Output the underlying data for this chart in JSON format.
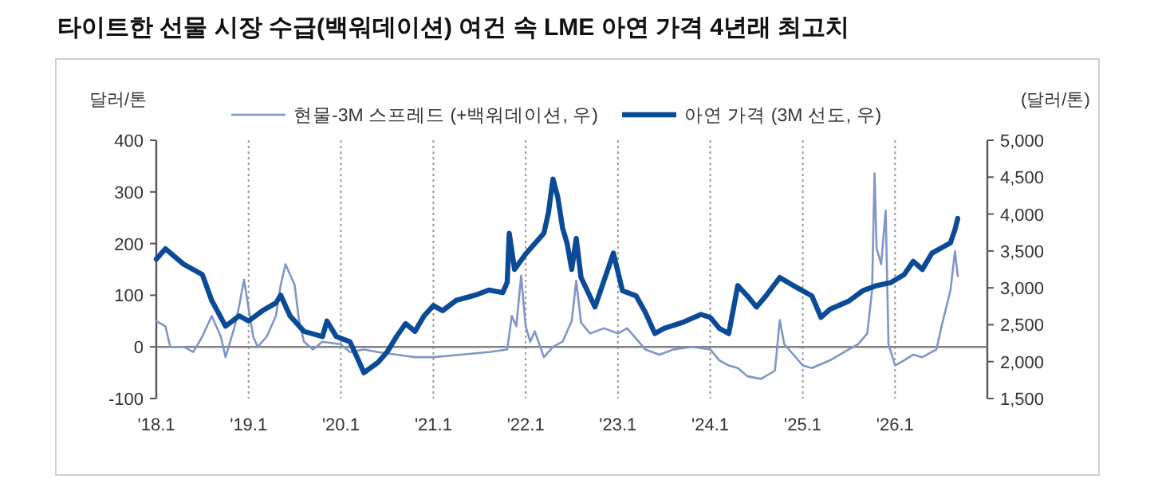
{
  "chart_data": {
    "type": "line",
    "title": "타이트한 선물 시장 수급(백워데이션) 여건 속 LME 아연 가격 4년래 최고치",
    "ylabel": "달러/톤",
    "y2label": "(달러/톤)",
    "xlim": [
      "2018-01-01",
      "2027-01-01"
    ],
    "xticks": [
      {
        "value": "2018-01-01",
        "label": "'18.1"
      },
      {
        "value": "2019-01-01",
        "label": "'19.1"
      },
      {
        "value": "2020-01-01",
        "label": "'20.1"
      },
      {
        "value": "2021-01-01",
        "label": "'21.1"
      },
      {
        "value": "2022-01-01",
        "label": "'22.1"
      },
      {
        "value": "2023-01-01",
        "label": "'23.1"
      },
      {
        "value": "2024-01-01",
        "label": "'24.1"
      },
      {
        "value": "2025-01-01",
        "label": "'25.1"
      },
      {
        "value": "2026-01-01",
        "label": "'26.1"
      }
    ],
    "ylim": [
      -100,
      400
    ],
    "yticks": [
      -100,
      0,
      100,
      200,
      300,
      400
    ],
    "y2lim": [
      1500,
      5000
    ],
    "y2ticks": [
      {
        "value": 1500,
        "label": "1,500"
      },
      {
        "value": 2000,
        "label": "2,000"
      },
      {
        "value": 2500,
        "label": "2,500"
      },
      {
        "value": 3000,
        "label": "3,000"
      },
      {
        "value": 3500,
        "label": "3,500"
      },
      {
        "value": 4000,
        "label": "4,000"
      },
      {
        "value": 4500,
        "label": "4,500"
      },
      {
        "value": 5000,
        "label": "5,000"
      }
    ],
    "grid": "x",
    "legend": "top",
    "line_style": "solid",
    "ref_lines": [
      {
        "axis": "y",
        "value": 0,
        "color": "#808080"
      }
    ],
    "series": [
      {
        "name": "현물-3M 스프레드 (+백워데이션, 우)",
        "color": "#8095c8",
        "x": [
          "2018-01-01",
          "2018-02-06",
          "2018-02-25",
          "2018-04-19",
          "2018-05-27",
          "2018-07-02",
          "2018-08-08",
          "2018-09-13",
          "2018-10-02",
          "2018-11-07",
          "2018-11-25",
          "2018-12-14",
          "2019-01-19",
          "2019-02-06",
          "2019-03-14",
          "2019-04-19",
          "2019-05-08",
          "2019-05-27",
          "2019-07-02",
          "2019-07-20",
          "2019-08-08",
          "2019-09-13",
          "2019-10-20",
          "2020-01-01",
          "2020-02-06",
          "2020-04-01",
          "2020-05-27",
          "2020-08-08",
          "2020-10-20",
          "2021-01-01",
          "2021-04-19",
          "2021-08-08",
          "2021-10-20",
          "2021-11-07",
          "2021-11-25",
          "2021-12-14",
          "2022-01-01",
          "2022-01-19",
          "2022-02-06",
          "2022-03-14",
          "2022-04-19",
          "2022-05-27",
          "2022-07-02",
          "2022-07-20",
          "2022-08-08",
          "2022-09-13",
          "2022-11-07",
          "2023-01-01",
          "2023-02-06",
          "2023-03-14",
          "2023-04-19",
          "2023-06-14",
          "2023-08-08",
          "2023-10-20",
          "2024-01-01",
          "2024-02-06",
          "2024-03-14",
          "2024-04-19",
          "2024-05-27",
          "2024-07-20",
          "2024-09-13",
          "2024-10-02",
          "2024-10-20",
          "2024-11-25",
          "2025-01-01",
          "2025-02-06",
          "2025-04-19",
          "2025-07-02",
          "2025-08-08",
          "2025-09-13",
          "2025-10-02",
          "2025-10-12",
          "2025-10-20",
          "2025-11-07",
          "2025-11-25",
          "2025-12-06",
          "2026-01-01",
          "2026-02-06",
          "2026-03-14",
          "2026-04-19",
          "2026-06-14",
          "2026-07-02",
          "2026-08-08",
          "2026-08-26",
          "2026-09-06"
        ],
        "values": [
          50,
          40,
          0,
          0,
          -10,
          20,
          60,
          20,
          -20,
          40,
          80,
          130,
          20,
          0,
          20,
          60,
          120,
          160,
          120,
          50,
          10,
          -5,
          10,
          5,
          -10,
          -5,
          -10,
          -15,
          -20,
          -20,
          -15,
          -10,
          -5,
          60,
          40,
          138,
          40,
          10,
          30,
          -20,
          0,
          10,
          50,
          128,
          47,
          26,
          36,
          26,
          36,
          16,
          -5,
          -15,
          -5,
          0,
          -5,
          -26,
          -36,
          -41,
          -57,
          -62,
          -46,
          52,
          5,
          -15,
          -36,
          -41,
          -26,
          -5,
          5,
          26,
          109,
          336,
          191,
          160,
          264,
          5,
          -36,
          -26,
          -15,
          -20,
          -5,
          36,
          109,
          185,
          137
        ]
      },
      {
        "name": "아연 가격 (3M 선도, 우)",
        "color": "#0b4a96",
        "axis": "y2",
        "x": [
          "2018-01-01",
          "2018-02-06",
          "2018-04-19",
          "2018-07-02",
          "2018-08-08",
          "2018-10-02",
          "2018-11-25",
          "2019-01-01",
          "2019-02-25",
          "2019-04-19",
          "2019-05-08",
          "2019-06-14",
          "2019-08-08",
          "2019-10-20",
          "2019-11-07",
          "2019-12-14",
          "2020-02-06",
          "2020-03-14",
          "2020-04-01",
          "2020-05-27",
          "2020-07-02",
          "2020-08-08",
          "2020-09-13",
          "2020-10-20",
          "2020-11-25",
          "2021-01-01",
          "2021-02-06",
          "2021-04-01",
          "2021-06-14",
          "2021-08-08",
          "2021-10-02",
          "2021-10-20",
          "2021-10-28",
          "2021-11-18",
          "2022-01-01",
          "2022-03-14",
          "2022-04-01",
          "2022-04-19",
          "2022-05-08",
          "2022-05-27",
          "2022-06-14",
          "2022-07-02",
          "2022-07-20",
          "2022-08-08",
          "2022-10-02",
          "2022-11-07",
          "2022-12-14",
          "2023-01-19",
          "2023-03-14",
          "2023-04-19",
          "2023-05-27",
          "2023-07-02",
          "2023-09-13",
          "2023-11-25",
          "2024-01-01",
          "2024-02-06",
          "2024-03-14",
          "2024-04-19",
          "2024-05-27",
          "2024-07-02",
          "2024-08-08",
          "2024-10-02",
          "2024-11-25",
          "2025-01-01",
          "2025-02-06",
          "2025-03-14",
          "2025-04-19",
          "2025-07-02",
          "2025-08-26",
          "2025-10-20",
          "2025-12-14",
          "2026-02-06",
          "2026-03-14",
          "2026-04-19",
          "2026-05-27",
          "2026-07-02",
          "2026-08-08",
          "2026-08-26",
          "2026-09-06"
        ],
        "values": [
          3390,
          3530,
          3320,
          3180,
          2830,
          2480,
          2620,
          2550,
          2690,
          2795,
          2900,
          2620,
          2410,
          2340,
          2550,
          2340,
          2270,
          1990,
          1850,
          1990,
          2130,
          2340,
          2515,
          2410,
          2620,
          2760,
          2690,
          2830,
          2900,
          2970,
          2935,
          3075,
          3740,
          3250,
          3460,
          3740,
          4020,
          4475,
          4230,
          3810,
          3600,
          3250,
          3670,
          3140,
          2740,
          3100,
          3470,
          2960,
          2890,
          2670,
          2380,
          2450,
          2530,
          2640,
          2600,
          2450,
          2380,
          3030,
          2890,
          2740,
          2890,
          3140,
          3030,
          2960,
          2890,
          2600,
          2710,
          2820,
          2960,
          3030,
          3070,
          3180,
          3360,
          3250,
          3470,
          3540,
          3610,
          3790,
          3940
        ]
      }
    ]
  }
}
